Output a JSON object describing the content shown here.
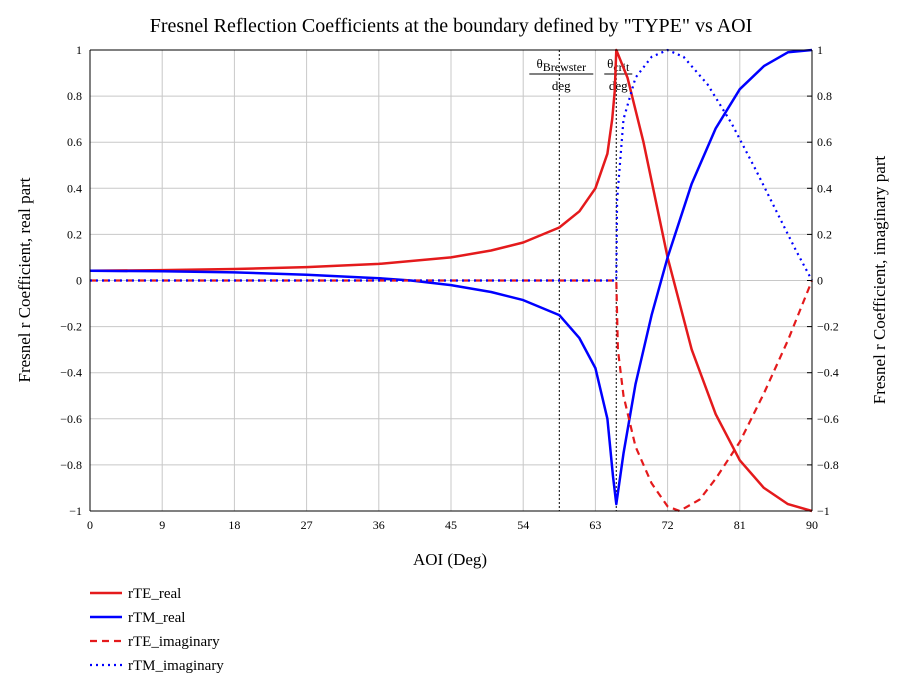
{
  "chart_data": {
    "type": "line",
    "title": "Fresnel Reflection  Coefficients at the boundary defined by \"TYPE\" vs AOI",
    "xlabel": "AOI (Deg)",
    "ylabel_left": "Fresnel r Coefficient, real part",
    "ylabel_right": "Fresnel r Coefficient, imaginary part",
    "xlim": [
      0,
      90
    ],
    "ylim": [
      -1,
      1
    ],
    "xticks": [
      "0",
      "9",
      "18",
      "27",
      "36",
      "45",
      "54",
      "63",
      "72",
      "81",
      "90"
    ],
    "xtick_values": [
      0,
      9,
      18,
      27,
      36,
      45,
      54,
      63,
      72,
      81,
      90
    ],
    "yticks": [
      "1",
      "0.8",
      "0.6",
      "0.4",
      "0.2",
      "0",
      "−0.2",
      "−0.4",
      "−0.6",
      "−0.8",
      "−1"
    ],
    "ytick_values": [
      1,
      0.8,
      0.6,
      0.4,
      0.2,
      0,
      -0.2,
      -0.4,
      -0.6,
      -0.8,
      -1
    ],
    "grid": true,
    "legend_position": "bottom-left",
    "markers": [
      {
        "theta": "θ",
        "sub": "Brewster",
        "unit": "deg",
        "x": 58.5
      },
      {
        "theta": "θ",
        "sub": "crit",
        "unit": "deg",
        "x": 65.6
      }
    ],
    "series": [
      {
        "name": "rTE_real",
        "color": "#e41a1c",
        "style": "solid",
        "points": [
          [
            0,
            0.042
          ],
          [
            9,
            0.045
          ],
          [
            18,
            0.05
          ],
          [
            27,
            0.058
          ],
          [
            36,
            0.072
          ],
          [
            45,
            0.1
          ],
          [
            50,
            0.13
          ],
          [
            54,
            0.165
          ],
          [
            58.5,
            0.23
          ],
          [
            61,
            0.3
          ],
          [
            63,
            0.4
          ],
          [
            64.5,
            0.55
          ],
          [
            65.1,
            0.7
          ],
          [
            65.4,
            0.82
          ],
          [
            65.6,
            1.0
          ],
          [
            67,
            0.88
          ],
          [
            69,
            0.6
          ],
          [
            72,
            0.1
          ],
          [
            75,
            -0.3
          ],
          [
            78,
            -0.58
          ],
          [
            81,
            -0.78
          ],
          [
            84,
            -0.9
          ],
          [
            87,
            -0.97
          ],
          [
            90,
            -1.0
          ]
        ]
      },
      {
        "name": "rTM_real",
        "color": "#0000ff",
        "style": "solid",
        "points": [
          [
            0,
            0.042
          ],
          [
            9,
            0.04
          ],
          [
            18,
            0.035
          ],
          [
            27,
            0.025
          ],
          [
            36,
            0.01
          ],
          [
            40,
            0.0
          ],
          [
            45,
            -0.02
          ],
          [
            50,
            -0.05
          ],
          [
            54,
            -0.085
          ],
          [
            58.5,
            -0.15
          ],
          [
            61,
            -0.25
          ],
          [
            63,
            -0.38
          ],
          [
            64.5,
            -0.6
          ],
          [
            65.2,
            -0.85
          ],
          [
            65.6,
            -0.97
          ],
          [
            66.5,
            -0.75
          ],
          [
            68,
            -0.45
          ],
          [
            70,
            -0.15
          ],
          [
            72,
            0.1
          ],
          [
            75,
            0.42
          ],
          [
            78,
            0.66
          ],
          [
            81,
            0.83
          ],
          [
            84,
            0.93
          ],
          [
            87,
            0.99
          ],
          [
            90,
            1.0
          ]
        ]
      },
      {
        "name": "rTE_imaginary",
        "color": "#e41a1c",
        "style": "dashed",
        "points": [
          [
            0,
            0
          ],
          [
            20,
            0
          ],
          [
            40,
            0
          ],
          [
            65.6,
            0
          ],
          [
            65.8,
            -0.3
          ],
          [
            66.5,
            -0.5
          ],
          [
            68,
            -0.72
          ],
          [
            70,
            -0.88
          ],
          [
            72,
            -0.98
          ],
          [
            73.5,
            -1.0
          ],
          [
            76,
            -0.95
          ],
          [
            78,
            -0.86
          ],
          [
            81,
            -0.7
          ],
          [
            84,
            -0.49
          ],
          [
            87,
            -0.26
          ],
          [
            90,
            0.0
          ]
        ]
      },
      {
        "name": "rTM_imaginary",
        "color": "#0000ff",
        "style": "dotted",
        "points": [
          [
            0,
            0
          ],
          [
            20,
            0
          ],
          [
            40,
            0
          ],
          [
            65.6,
            0
          ],
          [
            65.7,
            0.35
          ],
          [
            66.5,
            0.7
          ],
          [
            68,
            0.88
          ],
          [
            70,
            0.97
          ],
          [
            72,
            1.0
          ],
          [
            74,
            0.97
          ],
          [
            77,
            0.85
          ],
          [
            80,
            0.68
          ],
          [
            83,
            0.48
          ],
          [
            86,
            0.27
          ],
          [
            88,
            0.13
          ],
          [
            90,
            0.0
          ]
        ]
      }
    ]
  }
}
